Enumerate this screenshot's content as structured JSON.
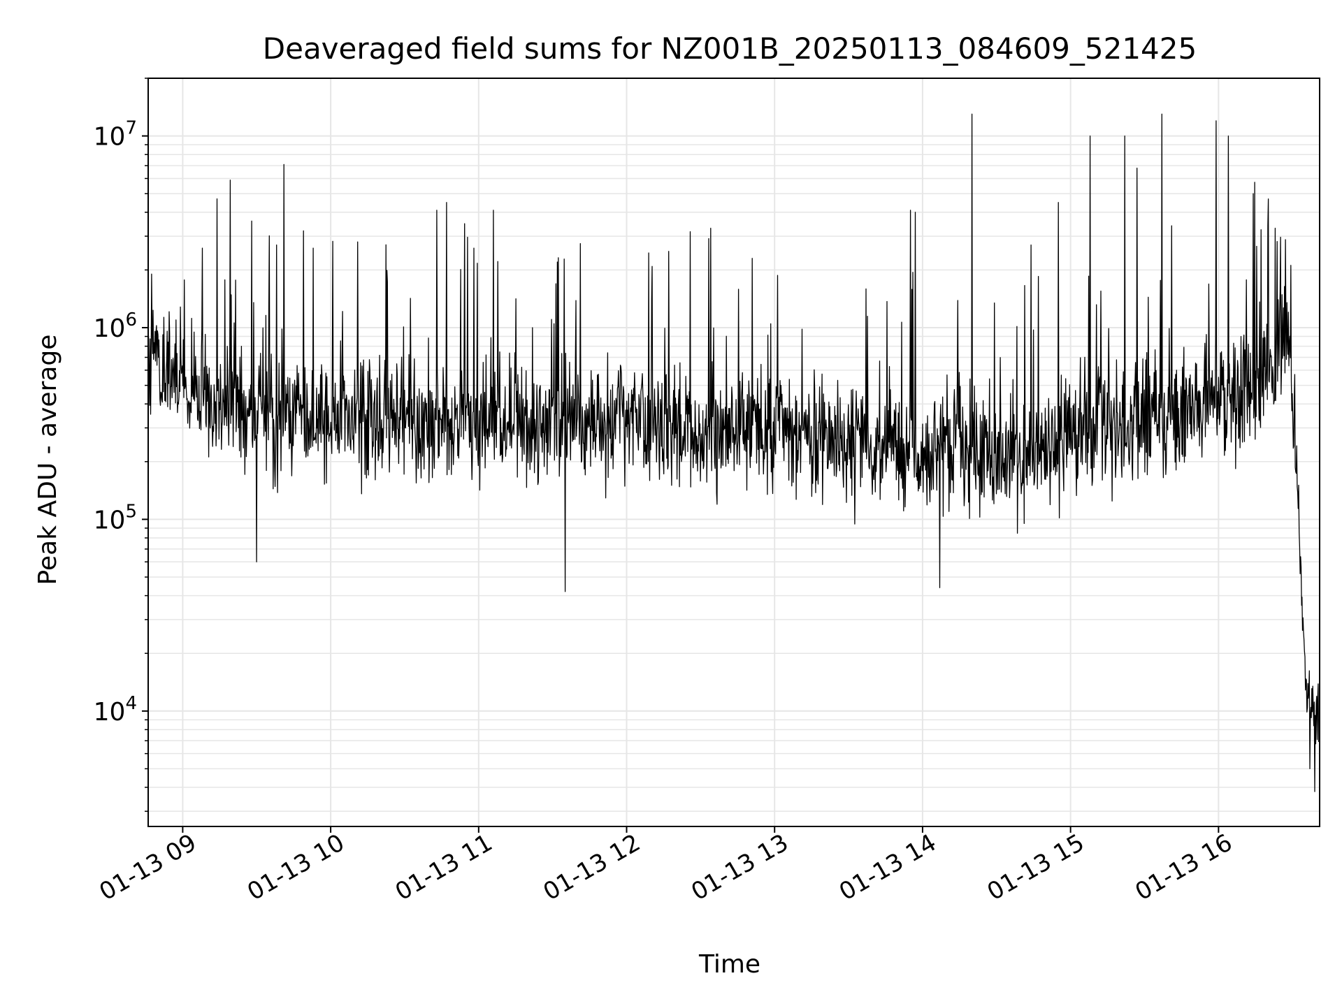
{
  "chart_data": {
    "type": "line",
    "title": "Deaveraged field sums for NZ001B_20250113_084609_521425",
    "xlabel": "Time",
    "ylabel": "Peak ADU - average",
    "y_scale": "log",
    "ylim": [
      2500,
      20000000
    ],
    "xlim": [
      "2025-01-13 08:46",
      "2025-01-13 16:41"
    ],
    "x_ticks": [
      {
        "t": "2025-01-13 09:00",
        "label": "01-13 09"
      },
      {
        "t": "2025-01-13 10:00",
        "label": "01-13 10"
      },
      {
        "t": "2025-01-13 11:00",
        "label": "01-13 11"
      },
      {
        "t": "2025-01-13 12:00",
        "label": "01-13 12"
      },
      {
        "t": "2025-01-13 13:00",
        "label": "01-13 13"
      },
      {
        "t": "2025-01-13 14:00",
        "label": "01-13 14"
      },
      {
        "t": "2025-01-13 15:00",
        "label": "01-13 15"
      },
      {
        "t": "2025-01-13 16:00",
        "label": "01-13 16"
      }
    ],
    "y_ticks": [
      {
        "value": 10000,
        "base": "10",
        "exp": "4"
      },
      {
        "value": 100000,
        "base": "10",
        "exp": "5"
      },
      {
        "value": 1000000,
        "base": "10",
        "exp": "6"
      },
      {
        "value": 10000000,
        "base": "10",
        "exp": "7"
      }
    ],
    "grid": true,
    "line_color": "#000000",
    "grid_color": "#e6e6e6",
    "series": [
      {
        "name": "",
        "baseline": [
          {
            "t": "2025-01-13 08:46",
            "y": 850000
          },
          {
            "t": "2025-01-13 08:55",
            "y": 600000
          },
          {
            "t": "2025-01-13 09:10",
            "y": 420000
          },
          {
            "t": "2025-01-13 09:30",
            "y": 350000
          },
          {
            "t": "2025-01-13 10:00",
            "y": 340000
          },
          {
            "t": "2025-01-13 11:00",
            "y": 330000
          },
          {
            "t": "2025-01-13 12:00",
            "y": 310000
          },
          {
            "t": "2025-01-13 13:00",
            "y": 280000
          },
          {
            "t": "2025-01-13 14:00",
            "y": 230000
          },
          {
            "t": "2025-01-13 14:40",
            "y": 210000
          },
          {
            "t": "2025-01-13 15:00",
            "y": 280000
          },
          {
            "t": "2025-01-13 15:40",
            "y": 340000
          },
          {
            "t": "2025-01-13 16:20",
            "y": 500000
          },
          {
            "t": "2025-01-13 16:27",
            "y": 850000
          },
          {
            "t": "2025-01-13 16:30",
            "y": 500000
          },
          {
            "t": "2025-01-13 16:32",
            "y": 150000
          },
          {
            "t": "2025-01-13 16:34",
            "y": 30000
          },
          {
            "t": "2025-01-13 16:36",
            "y": 12000
          },
          {
            "t": "2025-01-13 16:41",
            "y": 8000
          }
        ],
        "scatter_decades": 0.35,
        "samples": 2400,
        "peaks": [
          {
            "t": "2025-01-13 09:14",
            "y": 4700000
          },
          {
            "t": "2025-01-13 09:08",
            "y": 2600000
          },
          {
            "t": "2025-01-13 09:28",
            "y": 3600000
          },
          {
            "t": "2025-01-13 09:38",
            "y": 2700000
          },
          {
            "t": "2025-01-13 09:41",
            "y": 7100000
          },
          {
            "t": "2025-01-13 09:49",
            "y": 3200000
          },
          {
            "t": "2025-01-13 09:53",
            "y": 2600000
          },
          {
            "t": "2025-01-13 10:43",
            "y": 4100000
          },
          {
            "t": "2025-01-13 10:47",
            "y": 4500000
          },
          {
            "t": "2025-01-13 10:58",
            "y": 2600000
          },
          {
            "t": "2025-01-13 11:06",
            "y": 4100000
          },
          {
            "t": "2025-01-13 11:32",
            "y": 2200000
          },
          {
            "t": "2025-01-13 12:17",
            "y": 2500000
          },
          {
            "t": "2025-01-13 12:34",
            "y": 3300000
          },
          {
            "t": "2025-01-13 13:55",
            "y": 4100000
          },
          {
            "t": "2025-01-13 13:57",
            "y": 4000000
          },
          {
            "t": "2025-01-13 14:20",
            "y": 13000000
          },
          {
            "t": "2025-01-13 14:44",
            "y": 2700000
          },
          {
            "t": "2025-01-13 14:55",
            "y": 4500000
          },
          {
            "t": "2025-01-13 15:08",
            "y": 10000000
          },
          {
            "t": "2025-01-13 15:22",
            "y": 10000000
          },
          {
            "t": "2025-01-13 15:27",
            "y": 6800000
          },
          {
            "t": "2025-01-13 15:37",
            "y": 13000000
          },
          {
            "t": "2025-01-13 15:41",
            "y": 3400000
          },
          {
            "t": "2025-01-13 15:59",
            "y": 12000000
          },
          {
            "t": "2025-01-13 16:04",
            "y": 10000000
          },
          {
            "t": "2025-01-13 16:14",
            "y": 5000000
          },
          {
            "t": "2025-01-13 16:20",
            "y": 3400000
          },
          {
            "t": "2025-01-13 16:23",
            "y": 3300000
          }
        ],
        "dips": [
          {
            "t": "2025-01-13 09:30",
            "y": 60000
          },
          {
            "t": "2025-01-13 11:35",
            "y": 42000
          },
          {
            "t": "2025-01-13 14:07",
            "y": 44000
          },
          {
            "t": "2025-01-13 16:37",
            "y": 5000
          },
          {
            "t": "2025-01-13 16:39",
            "y": 3800
          }
        ]
      }
    ]
  }
}
